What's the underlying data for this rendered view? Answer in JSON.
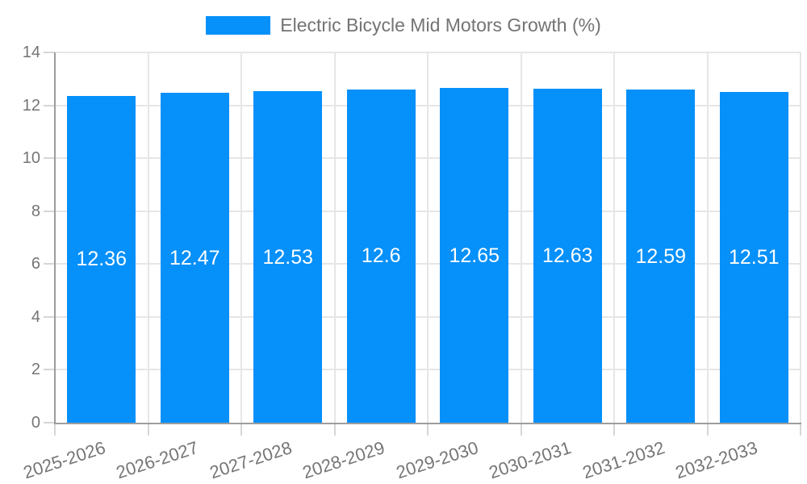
{
  "chart_data": {
    "type": "bar",
    "title": "",
    "legend": [
      "Electric Bicycle Mid Motors Growth (%)"
    ],
    "legend_position": "top-center",
    "categories": [
      "2025-2026",
      "2026-2027",
      "2027-2028",
      "2028-2029",
      "2029-2030",
      "2030-2031",
      "2031-2032",
      "2032-2033"
    ],
    "values": [
      12.36,
      12.47,
      12.53,
      12.6,
      12.65,
      12.63,
      12.59,
      12.51
    ],
    "xlabel": "",
    "ylabel": "",
    "ylim": [
      0,
      14
    ],
    "yticks": [
      0,
      2,
      4,
      6,
      8,
      10,
      12,
      14
    ],
    "grid": true,
    "value_labels": "inside-middle-white",
    "x_tick_rotation_deg": -18,
    "colors": {
      "bar": "#0590fa",
      "value_label": "#ffffff",
      "axis_text": "#757575",
      "legend_text": "#737373",
      "axis_line": "#9d9d9d",
      "gridline": "#e6e6e6",
      "tick": "#d6d6d6",
      "background": "#ffffff"
    }
  }
}
